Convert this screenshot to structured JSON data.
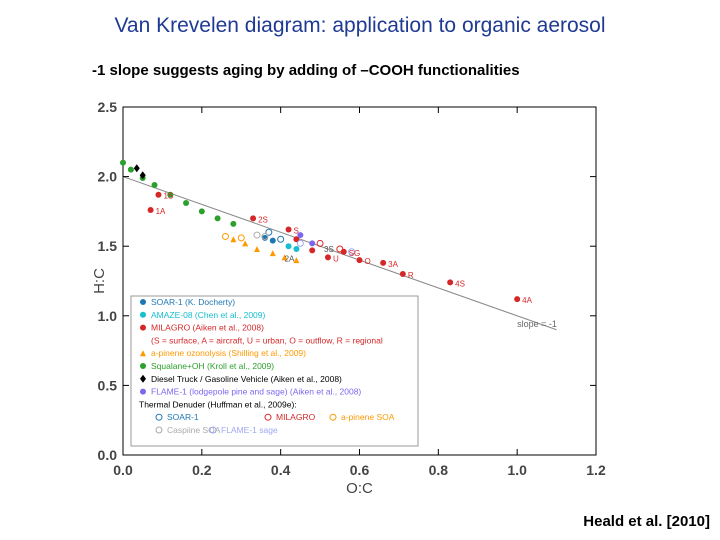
{
  "slide": {
    "title": "Van Krevelen diagram: application to organic aerosol",
    "subtitle": "-1 slope suggests aging by adding of –COOH functionalities",
    "citation": "Heald et al. [2010]"
  },
  "chart_data": {
    "type": "scatter",
    "xlabel": "O:C",
    "ylabel": "H:C",
    "xlim": [
      0.0,
      1.2
    ],
    "ylim": [
      0.0,
      2.5
    ],
    "xticks": [
      "0.0",
      "0.2",
      "0.4",
      "0.6",
      "0.8",
      "1.0",
      "1.2"
    ],
    "yticks": [
      "0.0",
      "0.5",
      "1.0",
      "1.5",
      "2.0",
      "2.5"
    ],
    "grid": false,
    "legend_position": "bottom-left",
    "reference_line": {
      "label": "slope = -1",
      "x": [
        0.0,
        1.1
      ],
      "y": [
        2.0,
        0.9
      ],
      "color": "#888888"
    },
    "series": [
      {
        "name": "SOAR-1 (K. Docherty)",
        "color": "#1f77b4",
        "marker": "circle",
        "points": [
          {
            "x": 0.36,
            "y": 1.56,
            "label": ""
          },
          {
            "x": 0.38,
            "y": 1.54,
            "label": ""
          }
        ]
      },
      {
        "name": "AMAZE-08 (Chen et al., 2009)",
        "color": "#17becf",
        "marker": "circle",
        "points": [
          {
            "x": 0.42,
            "y": 1.5,
            "label": ""
          },
          {
            "x": 0.44,
            "y": 1.48,
            "label": ""
          }
        ]
      },
      {
        "name": "MILAGRO (Aiken et al., 2008)",
        "color": "#d62728",
        "marker": "circle",
        "points": [
          {
            "x": 0.42,
            "y": 1.62,
            "label": "S"
          },
          {
            "x": 0.44,
            "y": 1.55,
            "label": ""
          },
          {
            "x": 0.48,
            "y": 1.47,
            "label": ""
          },
          {
            "x": 0.52,
            "y": 1.42,
            "label": "U"
          },
          {
            "x": 0.56,
            "y": 1.46,
            "label": "SG"
          },
          {
            "x": 0.6,
            "y": 1.4,
            "label": "O"
          },
          {
            "x": 0.66,
            "y": 1.38,
            "label": "3A"
          },
          {
            "x": 0.71,
            "y": 1.3,
            "label": "R"
          },
          {
            "x": 0.83,
            "y": 1.24,
            "label": "4S"
          },
          {
            "x": 1.0,
            "y": 1.12,
            "label": "4A"
          },
          {
            "x": 0.33,
            "y": 1.7,
            "label": "2S"
          },
          {
            "x": 0.09,
            "y": 1.87,
            "label": "1S"
          },
          {
            "x": 0.07,
            "y": 1.76,
            "label": "1A"
          }
        ]
      },
      {
        "name": "(S = surface, A = aircraft, U = urban, O = outflow, R = regional",
        "color": "#d62728",
        "marker": "none",
        "points": []
      },
      {
        "name": "a-pinene ozonolysis (Shilling et al., 2009)",
        "color": "#ff9900",
        "marker": "triangle",
        "points": [
          {
            "x": 0.28,
            "y": 1.55,
            "label": ""
          },
          {
            "x": 0.31,
            "y": 1.52,
            "label": ""
          },
          {
            "x": 0.34,
            "y": 1.48,
            "label": ""
          },
          {
            "x": 0.38,
            "y": 1.45,
            "label": ""
          },
          {
            "x": 0.41,
            "y": 1.42,
            "label": ""
          },
          {
            "x": 0.44,
            "y": 1.4,
            "label": ""
          }
        ]
      },
      {
        "name": "Squalane+OH (Kroll et al., 2009)",
        "color": "#2ca02c",
        "marker": "circle",
        "points": [
          {
            "x": 0.0,
            "y": 2.1,
            "label": ""
          },
          {
            "x": 0.02,
            "y": 2.05,
            "label": ""
          },
          {
            "x": 0.05,
            "y": 1.99,
            "label": ""
          },
          {
            "x": 0.08,
            "y": 1.94,
            "label": ""
          },
          {
            "x": 0.12,
            "y": 1.87,
            "label": ""
          },
          {
            "x": 0.16,
            "y": 1.81,
            "label": ""
          },
          {
            "x": 0.2,
            "y": 1.75,
            "label": ""
          },
          {
            "x": 0.24,
            "y": 1.7,
            "label": ""
          },
          {
            "x": 0.28,
            "y": 1.66,
            "label": ""
          }
        ]
      },
      {
        "name": "Diesel Truck / Gasoline Vehicle (Aiken et al., 2008)",
        "color": "#000000",
        "marker": "diamond",
        "points": [
          {
            "x": 0.035,
            "y": 2.06,
            "label": ""
          },
          {
            "x": 0.05,
            "y": 2.01,
            "label": ""
          }
        ]
      },
      {
        "name": "FLAME-1 (lodgepole pine and sage) (Aiken et al., 2008)",
        "color": "#7b68ee",
        "marker": "circle",
        "points": [
          {
            "x": 0.45,
            "y": 1.58,
            "label": ""
          },
          {
            "x": 0.48,
            "y": 1.52,
            "label": ""
          }
        ]
      },
      {
        "name": "Thermal Denuder (Huffman et al., 2009e):",
        "color": "#000000",
        "marker": "none",
        "points": []
      },
      {
        "name": "SOAR-1",
        "color": "#1f77b4",
        "marker": "open-circle",
        "points": [
          {
            "x": 0.37,
            "y": 1.6,
            "label": ""
          },
          {
            "x": 0.4,
            "y": 1.55,
            "label": ""
          }
        ]
      },
      {
        "name": "MILAGRO",
        "color": "#d62728",
        "marker": "open-circle",
        "points": [
          {
            "x": 0.5,
            "y": 1.52,
            "label": ""
          },
          {
            "x": 0.55,
            "y": 1.48,
            "label": ""
          }
        ]
      },
      {
        "name": "a-pinene SOA",
        "color": "#ff9900",
        "marker": "open-circle",
        "points": [
          {
            "x": 0.26,
            "y": 1.57,
            "label": ""
          },
          {
            "x": 0.3,
            "y": 1.56,
            "label": ""
          }
        ]
      },
      {
        "name": "Caspiine SOA",
        "color": "#aaaaaa",
        "marker": "open-circle",
        "points": [
          {
            "x": 0.34,
            "y": 1.58,
            "label": ""
          },
          {
            "x": 0.36,
            "y": 1.57,
            "label": ""
          }
        ]
      },
      {
        "name": "FLAME-1 sage",
        "color": "#9ea8f0",
        "marker": "open-circle",
        "points": [
          {
            "x": 0.45,
            "y": 1.52,
            "label": ""
          },
          {
            "x": 0.58,
            "y": 1.46,
            "label": ""
          }
        ]
      }
    ],
    "annotations": [
      {
        "text": "2A",
        "x": 0.41,
        "y": 1.39
      },
      {
        "text": "3S",
        "x": 0.51,
        "y": 1.46
      }
    ]
  }
}
